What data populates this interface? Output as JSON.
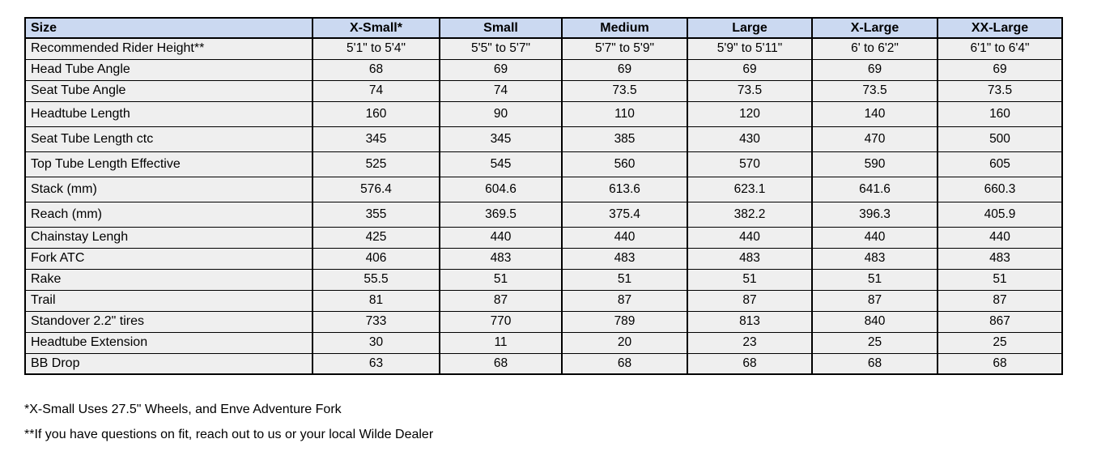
{
  "colors": {
    "header_bg": "#cbd9f1",
    "row_bg": "#efefef",
    "border": "#000000",
    "text": "#000000"
  },
  "table": {
    "columns": [
      "Size",
      "X-Small*",
      "Small",
      "Medium",
      "Large",
      "X-Large",
      "XX-Large"
    ],
    "rows": [
      {
        "label": "Recommended Rider Height**",
        "values": [
          "5'1\" to 5'4\"",
          "5'5\" to 5'7\"",
          "5'7\" to 5'9\"",
          "5'9\" to 5'11\"",
          "6' to 6'2\"",
          "6'1\" to 6'4\""
        ]
      },
      {
        "label": "Head Tube Angle",
        "values": [
          "68",
          "69",
          "69",
          "69",
          "69",
          "69"
        ]
      },
      {
        "label": "Seat Tube Angle",
        "values": [
          "74",
          "74",
          "73.5",
          "73.5",
          "73.5",
          "73.5"
        ]
      },
      {
        "label": "Headtube Length",
        "values": [
          "160",
          "90",
          "110",
          "120",
          "140",
          "160"
        ]
      },
      {
        "label": "Seat Tube Length ctc",
        "values": [
          "345",
          "345",
          "385",
          "430",
          "470",
          "500"
        ]
      },
      {
        "label": "Top Tube Length Effective",
        "values": [
          "525",
          "545",
          "560",
          "570",
          "590",
          "605"
        ]
      },
      {
        "label": "Stack (mm)",
        "values": [
          "576.4",
          "604.6",
          "613.6",
          "623.1",
          "641.6",
          "660.3"
        ]
      },
      {
        "label": "Reach (mm)",
        "values": [
          "355",
          "369.5",
          "375.4",
          "382.2",
          "396.3",
          "405.9"
        ]
      },
      {
        "label": "Chainstay Lengh",
        "values": [
          "425",
          "440",
          "440",
          "440",
          "440",
          "440"
        ]
      },
      {
        "label": "Fork ATC",
        "values": [
          "406",
          "483",
          "483",
          "483",
          "483",
          "483"
        ]
      },
      {
        "label": "Rake",
        "values": [
          "55.5",
          "51",
          "51",
          "51",
          "51",
          "51"
        ]
      },
      {
        "label": "Trail",
        "values": [
          "81",
          "87",
          "87",
          "87",
          "87",
          "87"
        ]
      },
      {
        "label": "Standover 2.2\" tires",
        "values": [
          "733",
          "770",
          "789",
          "813",
          "840",
          "867"
        ]
      },
      {
        "label": "Headtube Extension",
        "values": [
          "30",
          "11",
          "20",
          "23",
          "25",
          "25"
        ]
      },
      {
        "label": "BB Drop",
        "values": [
          "63",
          "68",
          "68",
          "68",
          "68",
          "68"
        ]
      }
    ]
  },
  "footnotes": [
    "*X-Small Uses 27.5\" Wheels, and Enve Adventure Fork",
    "**If you have questions on fit, reach out to us or your local Wilde Dealer"
  ]
}
